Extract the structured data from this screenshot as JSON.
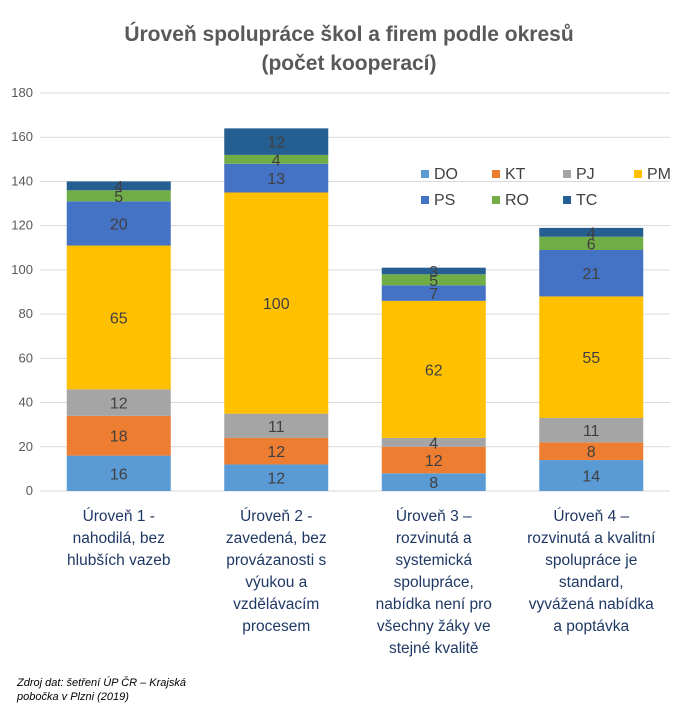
{
  "chart_data": {
    "type": "bar",
    "stacked": true,
    "title": "Úroveň spolupráce škol a firem podle okresů",
    "subtitle": "(počet kooperací)",
    "ylim": [
      0,
      180
    ],
    "yticks": [
      0,
      20,
      40,
      60,
      80,
      100,
      120,
      140,
      160,
      180
    ],
    "grid": true,
    "legend": "top-right",
    "categories": [
      [
        "Úroveň 1 -",
        "nahodilá, bez",
        "hlubších vazeb"
      ],
      [
        "Úroveň 2 -",
        "zavedená, bez",
        "provázanosti s",
        "výukou a",
        "vzdělávacím",
        "procesem"
      ],
      [
        "Úroveň 3 –",
        "rozvinutá a",
        "systemická",
        "spolupráce,",
        "nabídka není pro",
        "všechny žáky ve",
        "stejné kvalitě"
      ],
      [
        "Úroveň 4 –",
        "rozvinutá a kvalitní",
        "spolupráce je",
        "standard,",
        "vyvážená nabídka",
        "a poptávka"
      ]
    ],
    "series": [
      {
        "name": "DO",
        "color": "#5b9bd5",
        "values": [
          16,
          12,
          8,
          14
        ]
      },
      {
        "name": "KT",
        "color": "#ed7d31",
        "values": [
          18,
          12,
          12,
          8
        ]
      },
      {
        "name": "PJ",
        "color": "#a5a5a5",
        "values": [
          12,
          11,
          4,
          11
        ]
      },
      {
        "name": "PM",
        "color": "#ffc000",
        "values": [
          65,
          100,
          62,
          55
        ]
      },
      {
        "name": "PS",
        "color": "#4472c4",
        "values": [
          20,
          13,
          7,
          21
        ]
      },
      {
        "name": "RO",
        "color": "#70ad47",
        "values": [
          5,
          4,
          5,
          6
        ]
      },
      {
        "name": "TC",
        "color": "#255e91",
        "values": [
          4,
          12,
          3,
          4
        ]
      }
    ]
  },
  "source": [
    "Zdroj dat: šetření ÚP ČR – Krajská",
    "pobočka v Plzni (2019)"
  ]
}
